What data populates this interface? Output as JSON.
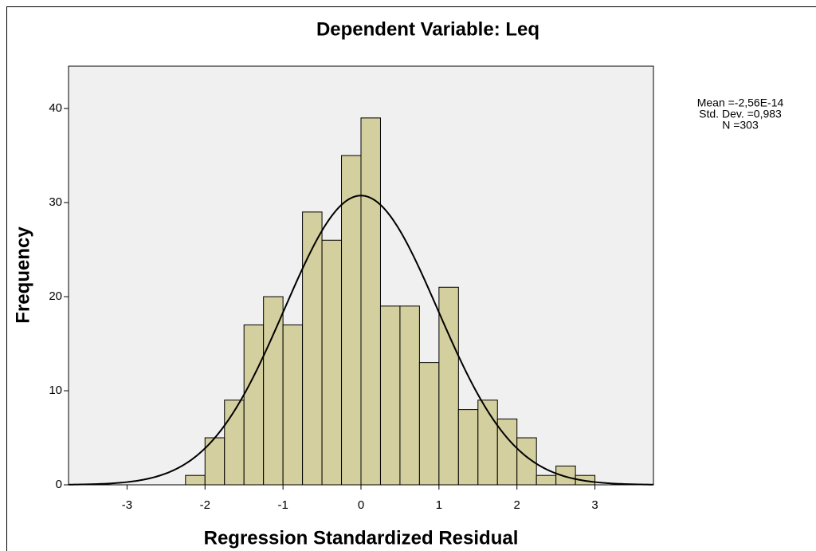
{
  "chart_data": {
    "type": "histogram",
    "title": "Dependent Variable: Leq",
    "x_label": "Regression Standardized Residual",
    "y_label": "Frequency",
    "bins": [
      -2.25,
      -2.0,
      -1.75,
      -1.5,
      -1.25,
      -1.0,
      -0.75,
      -0.5,
      -0.25,
      0.0,
      0.25,
      0.5,
      0.75,
      1.0,
      1.25,
      1.5,
      1.75,
      2.0,
      2.25,
      2.5,
      2.75,
      3.0
    ],
    "values": [
      1,
      5,
      9,
      17,
      20,
      17,
      29,
      26,
      35,
      39,
      19,
      19,
      13,
      21,
      8,
      9,
      7,
      5,
      1,
      2,
      1
    ],
    "color": "#d4cf9e",
    "background": "#f0f0f0",
    "curve_color": "#000000",
    "stats": [
      {
        "label": "Mean =-2,56E-14",
        "value": -2.56e-14
      },
      {
        "label": "Std. Dev. =0,983",
        "value": 0.983
      },
      {
        "label": "N =303",
        "value": 303
      }
    ],
    "xlim": [
      -3.75,
      3.75
    ],
    "xticks": [
      -3,
      -2,
      -1,
      0,
      1,
      2,
      3
    ],
    "ylim": [
      0,
      44.5
    ],
    "yticks": [
      0,
      10,
      20,
      30,
      40
    ],
    "grid": false
  }
}
